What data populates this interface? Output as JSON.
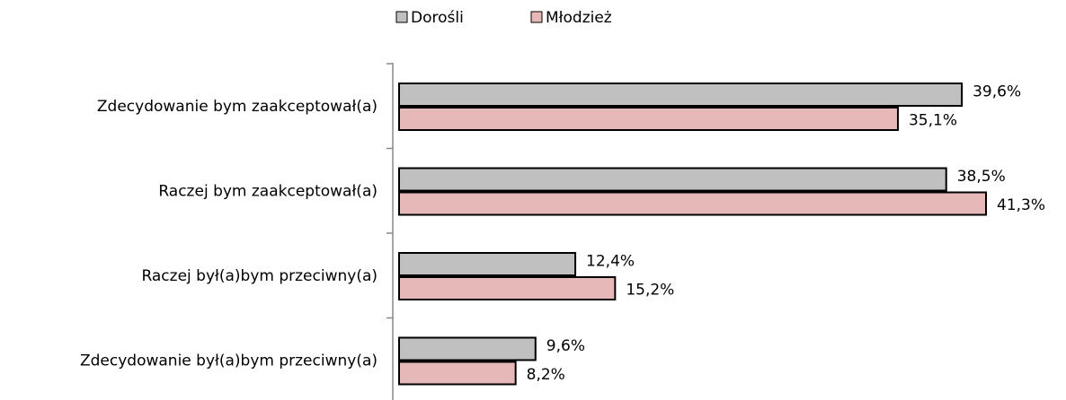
{
  "chart_data": {
    "type": "bar",
    "orientation": "horizontal",
    "categories": [
      "Zdecydowanie bym zaakceptował(a)",
      "Raczej bym zaakceptował(a)",
      "Raczej był(a)bym przeciwny(a)",
      "Zdecydowanie był(a)bym przeciwny(a)"
    ],
    "series": [
      {
        "name": "Dorośli",
        "color": "#c0c0c0",
        "values": [
          39.6,
          38.5,
          12.4,
          9.6
        ],
        "value_labels": [
          "39,6%",
          "38,5%",
          "12,4%",
          "9,6%"
        ]
      },
      {
        "name": "Młodzież",
        "color": "#e6b9b8",
        "values": [
          35.1,
          41.3,
          15.2,
          8.2
        ],
        "value_labels": [
          "35,1%",
          "41,3%",
          "15,2%",
          "8,2%"
        ]
      }
    ],
    "legend": "top"
  }
}
